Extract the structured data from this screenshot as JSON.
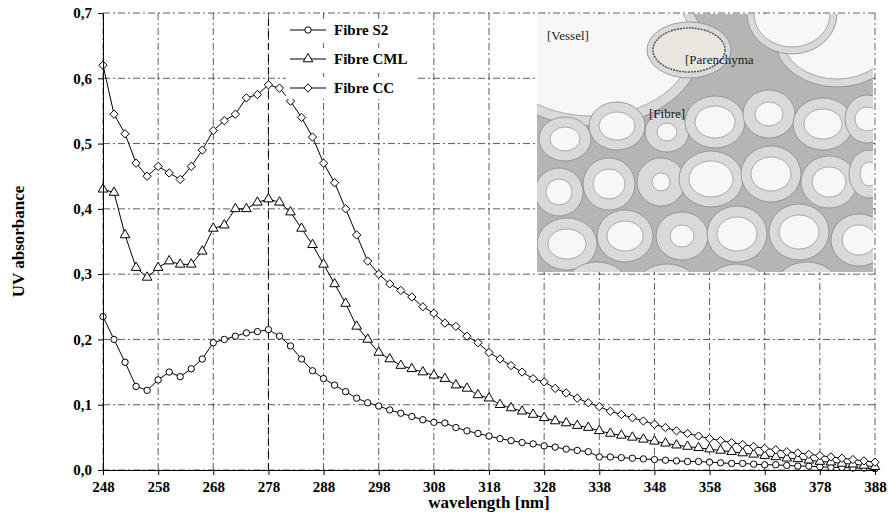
{
  "chart_data": {
    "type": "line",
    "xlabel": "wavelength [nm]",
    "ylabel": "UV absorbance",
    "x": [
      248,
      250,
      252,
      254,
      256,
      258,
      260,
      262,
      264,
      266,
      268,
      270,
      272,
      274,
      276,
      278,
      280,
      282,
      284,
      286,
      288,
      290,
      292,
      294,
      296,
      298,
      300,
      302,
      304,
      306,
      308,
      310,
      312,
      314,
      316,
      318,
      320,
      322,
      324,
      326,
      328,
      330,
      332,
      334,
      336,
      338,
      340,
      342,
      344,
      346,
      348,
      350,
      352,
      354,
      356,
      358,
      360,
      362,
      364,
      366,
      368,
      370,
      372,
      374,
      376,
      378,
      380,
      382,
      384,
      386,
      388
    ],
    "series": [
      {
        "name": "Fibre S2",
        "color": "#000000",
        "marker": "circle",
        "line_style": "solid",
        "values": [
          0.235,
          0.2,
          0.165,
          0.128,
          0.122,
          0.138,
          0.15,
          0.143,
          0.155,
          0.17,
          0.195,
          0.2,
          0.205,
          0.21,
          0.212,
          0.215,
          0.205,
          0.19,
          0.17,
          0.152,
          0.14,
          0.13,
          0.12,
          0.11,
          0.103,
          0.098,
          0.092,
          0.087,
          0.082,
          0.077,
          0.073,
          0.072,
          0.065,
          0.06,
          0.056,
          0.052,
          0.048,
          0.045,
          0.042,
          0.04,
          0.037,
          0.035,
          0.032,
          0.03,
          0.028,
          0.02,
          0.02,
          0.019,
          0.018,
          0.017,
          0.016,
          0.015,
          0.014,
          0.013,
          0.013,
          0.012,
          0.011,
          0.01,
          0.01,
          0.009,
          0.008,
          0.008,
          0.007,
          0.006,
          0.006,
          0.005,
          0.004,
          0.004,
          0.003,
          0.003,
          0.002
        ]
      },
      {
        "name": "Fibre CML",
        "color": "#000000",
        "marker": "triangle",
        "line_style": "solid",
        "values": [
          0.43,
          0.425,
          0.36,
          0.31,
          0.295,
          0.31,
          0.32,
          0.315,
          0.315,
          0.335,
          0.37,
          0.375,
          0.4,
          0.4,
          0.41,
          0.415,
          0.41,
          0.395,
          0.37,
          0.345,
          0.315,
          0.285,
          0.255,
          0.22,
          0.2,
          0.18,
          0.17,
          0.16,
          0.155,
          0.15,
          0.145,
          0.14,
          0.13,
          0.125,
          0.115,
          0.11,
          0.1,
          0.095,
          0.09,
          0.085,
          0.08,
          0.075,
          0.072,
          0.068,
          0.065,
          0.06,
          0.056,
          0.053,
          0.05,
          0.047,
          0.044,
          0.041,
          0.038,
          0.036,
          0.034,
          0.032,
          0.03,
          0.028,
          0.026,
          0.024,
          0.022,
          0.02,
          0.018,
          0.017,
          0.015,
          0.013,
          0.012,
          0.01,
          0.009,
          0.007,
          0.005
        ]
      },
      {
        "name": "Fibre CC",
        "color": "#000000",
        "marker": "diamond",
        "line_style": "solid",
        "values": [
          0.62,
          0.545,
          0.515,
          0.47,
          0.45,
          0.465,
          0.455,
          0.445,
          0.465,
          0.49,
          0.52,
          0.535,
          0.545,
          0.57,
          0.575,
          0.59,
          0.585,
          0.565,
          0.54,
          0.51,
          0.47,
          0.44,
          0.4,
          0.36,
          0.32,
          0.3,
          0.285,
          0.275,
          0.265,
          0.25,
          0.24,
          0.225,
          0.22,
          0.205,
          0.195,
          0.18,
          0.17,
          0.16,
          0.15,
          0.14,
          0.135,
          0.125,
          0.118,
          0.11,
          0.103,
          0.097,
          0.09,
          0.085,
          0.08,
          0.075,
          0.07,
          0.065,
          0.06,
          0.056,
          0.052,
          0.048,
          0.045,
          0.042,
          0.039,
          0.036,
          0.033,
          0.031,
          0.028,
          0.026,
          0.024,
          0.022,
          0.02,
          0.018,
          0.016,
          0.014,
          0.012
        ]
      }
    ],
    "xlim": [
      248,
      388
    ],
    "xticks": [
      248,
      258,
      268,
      278,
      288,
      298,
      308,
      318,
      328,
      338,
      348,
      358,
      368,
      378,
      388
    ],
    "ylim": [
      0,
      0.7
    ],
    "yticks": [
      {
        "value": 0,
        "label": "0,0"
      },
      {
        "value": 0.1,
        "label": "0,1"
      },
      {
        "value": 0.2,
        "label": "0,2"
      },
      {
        "value": 0.3,
        "label": "0,3"
      },
      {
        "value": 0.4,
        "label": "0,4"
      },
      {
        "value": 0.5,
        "label": "0,5"
      },
      {
        "value": 0.6,
        "label": "0,6"
      },
      {
        "value": 0.7,
        "label": "0,7"
      }
    ],
    "reference_x": 278,
    "inset_labels": [
      "[Vessel]",
      "[Parenchyma",
      "[Fibre]"
    ],
    "grid": true,
    "legend": "top"
  }
}
